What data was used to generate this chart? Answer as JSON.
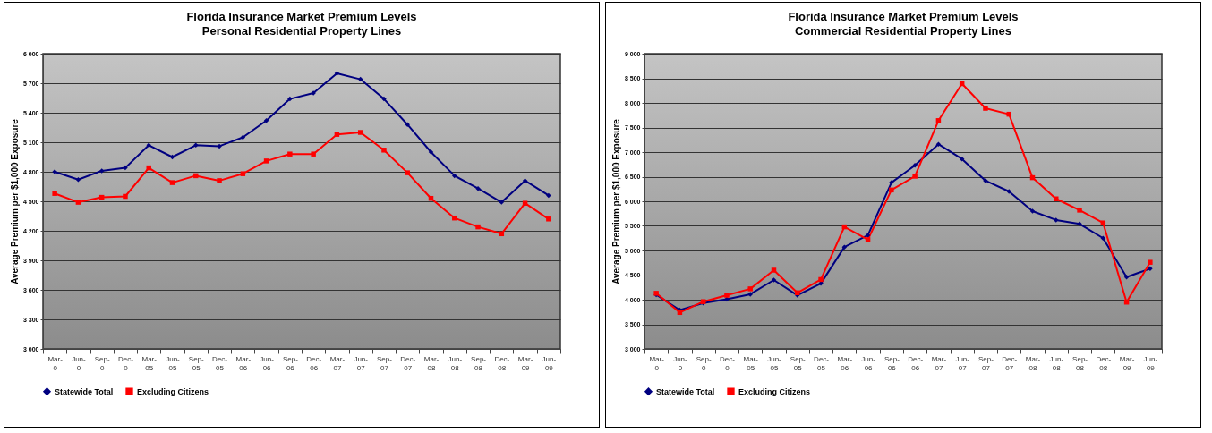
{
  "chart_data": [
    {
      "type": "line",
      "title": "Florida Insurance Market Premium Levels",
      "subtitle": "Personal Residential Property Lines",
      "ylabel": "Average Premium per $1,000 Exposure",
      "categories": [
        "Mar-0",
        "Jun-0",
        "Sep-0",
        "Dec-0",
        "Mar-05",
        "Jun-05",
        "Sep-05",
        "Dec-05",
        "Mar-06",
        "Jun-06",
        "Sep-06",
        "Dec-06",
        "Mar-07",
        "Jun-07",
        "Sep-07",
        "Dec-07",
        "Mar-08",
        "Jun-08",
        "Sep-08",
        "Dec-08",
        "Mar-09",
        "Jun-09"
      ],
      "series": [
        {
          "name": "Statewide Total",
          "color": "#000080",
          "marker": "diamond",
          "values": [
            4800,
            4720,
            4810,
            4840,
            5070,
            4950,
            5070,
            5060,
            5150,
            5320,
            5540,
            5600,
            5800,
            5740,
            5540,
            5280,
            5000,
            4760,
            4630,
            4490,
            4710,
            4560
          ]
        },
        {
          "name": "Excluding Citizens",
          "color": "#ff0000",
          "marker": "square",
          "values": [
            4580,
            4490,
            4540,
            4550,
            4840,
            4690,
            4760,
            4710,
            4780,
            4910,
            4980,
            4980,
            5180,
            5200,
            5020,
            4790,
            4530,
            4330,
            4240,
            4170,
            4480,
            4320
          ]
        }
      ],
      "ylim": [
        3000,
        6000
      ],
      "yticks": [
        {
          "value": 3000,
          "label": "3 000"
        },
        {
          "value": 3300,
          "label": "3 300"
        },
        {
          "value": 3600,
          "label": "3 600"
        },
        {
          "value": 3900,
          "label": "3 900"
        },
        {
          "value": 4200,
          "label": "4 200"
        },
        {
          "value": 4500,
          "label": "4 500"
        },
        {
          "value": 4800,
          "label": "4 800"
        },
        {
          "value": 5100,
          "label": "5 100"
        },
        {
          "value": 5400,
          "label": "5 400"
        },
        {
          "value": 5700,
          "label": "5 700"
        },
        {
          "value": 6000,
          "label": "6 000"
        }
      ],
      "grid": "y",
      "legend": "bottom"
    },
    {
      "type": "line",
      "title": "Florida Insurance Market Premium Levels",
      "subtitle": "Commercial Residential Property Lines",
      "ylabel": "Average Premium per $1,000 Exposure",
      "categories": [
        "Mar-0",
        "Jun-0",
        "Sep-0",
        "Dec-0",
        "Mar-05",
        "Jun-05",
        "Sep-05",
        "Dec-05",
        "Mar-06",
        "Jun-06",
        "Sep-06",
        "Dec-06",
        "Mar-07",
        "Jun-07",
        "Sep-07",
        "Dec-07",
        "Mar-08",
        "Jun-08",
        "Sep-08",
        "Dec-08",
        "Mar-09",
        "Jun-09"
      ],
      "series": [
        {
          "name": "Statewide Total",
          "color": "#000080",
          "marker": "diamond",
          "values": [
            4100,
            3790,
            3930,
            4010,
            4110,
            4400,
            4090,
            4330,
            5070,
            5310,
            6380,
            6730,
            7160,
            6860,
            6420,
            6200,
            5800,
            5620,
            5540,
            5250,
            4460,
            4630
          ]
        },
        {
          "name": "Excluding Citizens",
          "color": "#ff0000",
          "marker": "square",
          "values": [
            4130,
            3740,
            3960,
            4090,
            4220,
            4600,
            4140,
            4410,
            5480,
            5220,
            6230,
            6510,
            7640,
            8390,
            7890,
            7770,
            6480,
            6050,
            5820,
            5560,
            3950,
            4760
          ]
        }
      ],
      "ylim": [
        3000,
        9000
      ],
      "yticks": [
        {
          "value": 3000,
          "label": "3 000"
        },
        {
          "value": 3500,
          "label": "3 500"
        },
        {
          "value": 4000,
          "label": "4 000"
        },
        {
          "value": 4500,
          "label": "4 500"
        },
        {
          "value": 5000,
          "label": "5 000"
        },
        {
          "value": 5500,
          "label": "5 500"
        },
        {
          "value": 6000,
          "label": "6 000"
        },
        {
          "value": 6500,
          "label": "6 500"
        },
        {
          "value": 7000,
          "label": "7 000"
        },
        {
          "value": 7500,
          "label": "7 500"
        },
        {
          "value": 8000,
          "label": "8 000"
        },
        {
          "value": 8500,
          "label": "8 500"
        },
        {
          "value": 9000,
          "label": "9 000"
        }
      ],
      "grid": "y",
      "legend": "bottom"
    }
  ]
}
